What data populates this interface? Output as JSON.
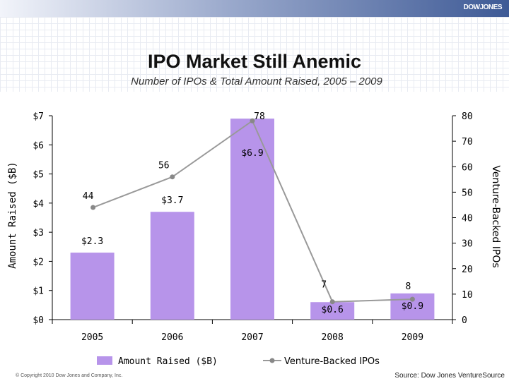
{
  "header": {
    "brand": "DOWJONES"
  },
  "chart_data": {
    "type": "bar",
    "title": "IPO Market Still Anemic",
    "subtitle": "Number of IPOs & Total Amount Raised, 2005 – 2009",
    "categories": [
      "2005",
      "2006",
      "2007",
      "2008",
      "2009"
    ],
    "ylabel": "Amount Raised ($B)",
    "y2label": "Venture-Backed IPOs",
    "ylim": [
      0,
      7
    ],
    "y2lim": [
      0,
      80
    ],
    "y_ticks": [
      "$0",
      "$1",
      "$2",
      "$3",
      "$4",
      "$5",
      "$6",
      "$7"
    ],
    "y2_ticks": [
      "0",
      "10",
      "20",
      "30",
      "40",
      "50",
      "60",
      "70",
      "80"
    ],
    "series": [
      {
        "name": "Amount Raised ($B)",
        "type": "bar",
        "axis": "left",
        "values": [
          2.3,
          3.7,
          6.9,
          0.6,
          0.9
        ],
        "labels": [
          "$2.3",
          "$3.7",
          "$6.9",
          "$0.6",
          "$0.9"
        ],
        "color": "#b794ea"
      },
      {
        "name": "Venture-Backed IPOs",
        "type": "line",
        "axis": "right",
        "values": [
          44,
          56,
          78,
          7,
          8
        ],
        "labels": [
          "44",
          "56",
          "78",
          "7",
          "8"
        ],
        "color": "#999999"
      }
    ],
    "legend": "bottom",
    "grid": false
  },
  "footer": {
    "copyright": "© Copyright 2010 Dow Jones and Company, Inc.",
    "source": "Source: Dow Jones VentureSource"
  }
}
